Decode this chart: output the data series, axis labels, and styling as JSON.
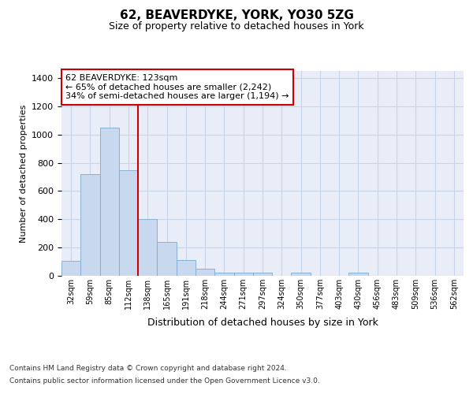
{
  "title1": "62, BEAVERDYKE, YORK, YO30 5ZG",
  "title2": "Size of property relative to detached houses in York",
  "xlabel": "Distribution of detached houses by size in York",
  "ylabel": "Number of detached properties",
  "categories": [
    "32sqm",
    "59sqm",
    "85sqm",
    "112sqm",
    "138sqm",
    "165sqm",
    "191sqm",
    "218sqm",
    "244sqm",
    "271sqm",
    "297sqm",
    "324sqm",
    "350sqm",
    "377sqm",
    "403sqm",
    "430sqm",
    "456sqm",
    "483sqm",
    "509sqm",
    "536sqm",
    "562sqm"
  ],
  "values": [
    105,
    720,
    1050,
    750,
    400,
    240,
    110,
    50,
    25,
    25,
    25,
    0,
    25,
    0,
    0,
    20,
    0,
    0,
    0,
    0,
    0
  ],
  "bar_color": "#c8d8ee",
  "bar_edge_color": "#7aaad0",
  "grid_color": "#c8d4e8",
  "background_color": "#e8edf8",
  "vline_color": "#cc0000",
  "vline_x": 3.5,
  "annotation_line1": "62 BEAVERDYKE: 123sqm",
  "annotation_line2": "← 65% of detached houses are smaller (2,242)",
  "annotation_line3": "34% of semi-detached houses are larger (1,194) →",
  "annotation_box_color": "#ffffff",
  "annotation_box_edge_color": "#cc0000",
  "ylim": [
    0,
    1450
  ],
  "yticks": [
    0,
    200,
    400,
    600,
    800,
    1000,
    1200,
    1400
  ],
  "footer1": "Contains HM Land Registry data © Crown copyright and database right 2024.",
  "footer2": "Contains public sector information licensed under the Open Government Licence v3.0."
}
